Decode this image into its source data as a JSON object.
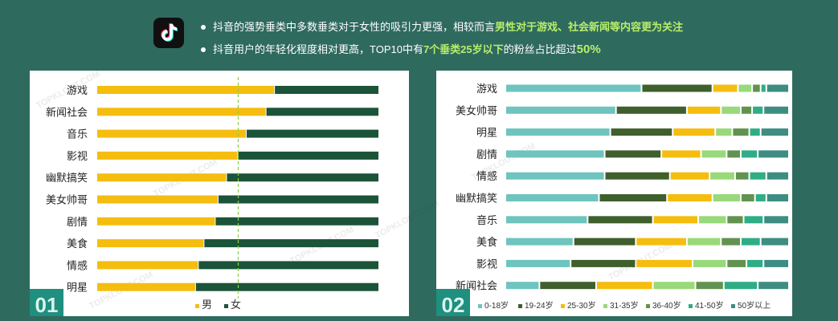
{
  "header": {
    "bullet1_pre": "抖音的强势垂类中多数垂类对于女性的吸引力更强，相较而言",
    "bullet1_hl": "男性对于游戏、社会新闻等内容更为关注",
    "bullet2_pre": "抖音用户的年轻化程度相对更高，TOP10中有",
    "bullet2_hl": "7个垂类25岁以下",
    "bullet2_mid": "的粉丝占比超过 ",
    "bullet2_big": "50%"
  },
  "watermark": "TOPKLOUT.COM",
  "panel_numbers": [
    "01",
    "02"
  ],
  "colors": {
    "male": "#f5bd0f",
    "female": "#1b5438",
    "divider": "#8ad045",
    "age": [
      "#6ec4be",
      "#3f5f2c",
      "#f5bd0f",
      "#98d97a",
      "#62924f",
      "#2fad86",
      "#3e8d82"
    ]
  },
  "chart_data": [
    {
      "type": "bar",
      "stacked": "100%",
      "orientation": "horizontal",
      "categories": [
        "游戏",
        "新闻社会",
        "音乐",
        "影视",
        "幽默搞笑",
        "美女帅哥",
        "剧情",
        "美食",
        "情感",
        "明星"
      ],
      "series": [
        {
          "name": "男",
          "values": [
            63,
            60,
            53,
            50,
            46,
            43,
            42,
            38,
            36,
            35
          ]
        },
        {
          "name": "女",
          "values": [
            37,
            40,
            47,
            50,
            54,
            57,
            58,
            62,
            64,
            65
          ]
        }
      ],
      "reference_line": 50,
      "legend": "bottom"
    },
    {
      "type": "bar",
      "stacked": "100%",
      "orientation": "horizontal",
      "categories": [
        "游戏",
        "美女帅哥",
        "明星",
        "剧情",
        "情感",
        "幽默搞笑",
        "音乐",
        "美食",
        "影视",
        "新闻社会"
      ],
      "series": [
        {
          "name": "0-18岁",
          "values": [
            48,
            39,
            37,
            35,
            35,
            33,
            29,
            24,
            23,
            12
          ]
        },
        {
          "name": "19-24岁",
          "values": [
            25,
            25,
            22,
            20,
            23,
            24,
            23,
            22,
            23,
            20
          ]
        },
        {
          "name": "25-30岁",
          "values": [
            9,
            12,
            15,
            14,
            14,
            16,
            16,
            18,
            20,
            20
          ]
        },
        {
          "name": "31-35岁",
          "values": [
            5,
            7,
            6,
            9,
            9,
            10,
            10,
            12,
            12,
            15
          ]
        },
        {
          "name": "36-40岁",
          "values": [
            3,
            4,
            6,
            5,
            5,
            5,
            6,
            7,
            7,
            10
          ]
        },
        {
          "name": "41-50岁",
          "values": [
            2,
            4,
            4,
            6,
            6,
            4,
            7,
            7,
            6,
            12
          ]
        },
        {
          "name": "50岁以上",
          "values": [
            8,
            9,
            10,
            11,
            8,
            8,
            9,
            10,
            9,
            11
          ]
        }
      ],
      "legend": "bottom"
    }
  ]
}
